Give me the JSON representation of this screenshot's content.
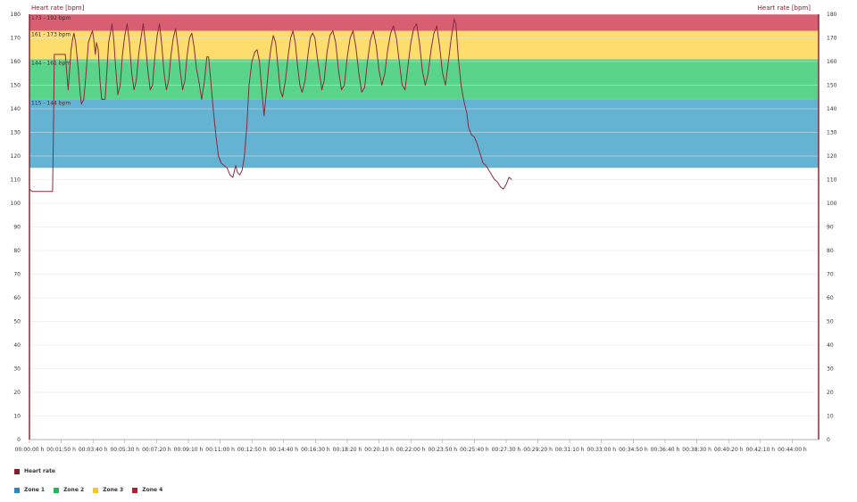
{
  "chart_data": {
    "type": "line",
    "title": "",
    "ylabel_left": "Heart rate [bpm]",
    "ylabel_right": "Heart rate [bpm]",
    "xlabel": "",
    "ylim": [
      0,
      180
    ],
    "xlim": [
      0,
      2980
    ],
    "y_ticks": [
      0,
      10,
      20,
      30,
      40,
      50,
      60,
      70,
      80,
      90,
      100,
      110,
      120,
      130,
      140,
      150,
      160,
      170,
      180
    ],
    "x_ticks": [
      "00:00:00 h",
      "00:01:50 h",
      "00:03:40 h",
      "00:05:30 h",
      "00:07:20 h",
      "00:09:10 h",
      "00:11:00 h",
      "00:12:50 h",
      "00:14:40 h",
      "00:16:30 h",
      "00:18:20 h",
      "00:20:10 h",
      "00:22:00 h",
      "00:23:50 h",
      "00:25:40 h",
      "00:27:30 h",
      "00:29:20 h",
      "00:31:10 h",
      "00:33:00 h",
      "00:34:50 h",
      "00:36:40 h",
      "00:38:30 h",
      "00:40:20 h",
      "00:42:10 h",
      "00:44:00 h"
    ],
    "x_tick_step_seconds": 110,
    "grid": true,
    "zones": [
      {
        "name": "Zone 1",
        "label": "115 - 144 bpm",
        "min": 115,
        "max": 144,
        "color": "#65b3d3"
      },
      {
        "name": "Zone 2",
        "label": "144 - 161 bpm",
        "min": 144,
        "max": 161,
        "color": "#5ad48a"
      },
      {
        "name": "Zone 3",
        "label": "161 - 173 bpm",
        "min": 161,
        "max": 173,
        "color": "#fdde6c"
      },
      {
        "name": "Zone 4",
        "label": "173 - 192 bpm",
        "min": 173,
        "max": 180,
        "color": "#d85f72"
      }
    ],
    "series": [
      {
        "name": "Heart rate",
        "color": "#8b2a3e",
        "points": [
          [
            0,
            106
          ],
          [
            10,
            105
          ],
          [
            80,
            105
          ],
          [
            83,
            130
          ],
          [
            86,
            163
          ],
          [
            110,
            163
          ],
          [
            124,
            163
          ],
          [
            134,
            148
          ],
          [
            144,
            165
          ],
          [
            150,
            170
          ],
          [
            154,
            172
          ],
          [
            160,
            168
          ],
          [
            168,
            158
          ],
          [
            176,
            146
          ],
          [
            180,
            142
          ],
          [
            188,
            144
          ],
          [
            196,
            155
          ],
          [
            204,
            168
          ],
          [
            212,
            171
          ],
          [
            218,
            173
          ],
          [
            222,
            170
          ],
          [
            228,
            163
          ],
          [
            232,
            168
          ],
          [
            238,
            165
          ],
          [
            244,
            152
          ],
          [
            250,
            144
          ],
          [
            262,
            144
          ],
          [
            268,
            156
          ],
          [
            274,
            168
          ],
          [
            280,
            172
          ],
          [
            286,
            176
          ],
          [
            292,
            169
          ],
          [
            298,
            158
          ],
          [
            306,
            146
          ],
          [
            314,
            150
          ],
          [
            322,
            163
          ],
          [
            330,
            171
          ],
          [
            338,
            176
          ],
          [
            346,
            168
          ],
          [
            354,
            155
          ],
          [
            362,
            148
          ],
          [
            370,
            152
          ],
          [
            378,
            163
          ],
          [
            386,
            170
          ],
          [
            394,
            176
          ],
          [
            402,
            167
          ],
          [
            410,
            156
          ],
          [
            418,
            148
          ],
          [
            426,
            150
          ],
          [
            434,
            162
          ],
          [
            442,
            171
          ],
          [
            450,
            176
          ],
          [
            458,
            167
          ],
          [
            466,
            155
          ],
          [
            474,
            148
          ],
          [
            482,
            152
          ],
          [
            490,
            163
          ],
          [
            498,
            170
          ],
          [
            506,
            174
          ],
          [
            514,
            166
          ],
          [
            522,
            156
          ],
          [
            530,
            148
          ],
          [
            538,
            152
          ],
          [
            546,
            163
          ],
          [
            554,
            170
          ],
          [
            562,
            172
          ],
          [
            570,
            166
          ],
          [
            578,
            157
          ],
          [
            586,
            152
          ],
          [
            596,
            144
          ],
          [
            606,
            152
          ],
          [
            614,
            162
          ],
          [
            620,
            162
          ],
          [
            626,
            154
          ],
          [
            636,
            140
          ],
          [
            646,
            128
          ],
          [
            654,
            120
          ],
          [
            664,
            117
          ],
          [
            674,
            116
          ],
          [
            684,
            115
          ],
          [
            694,
            112
          ],
          [
            704,
            111
          ],
          [
            710,
            114
          ],
          [
            714,
            116
          ],
          [
            720,
            113
          ],
          [
            728,
            112
          ],
          [
            736,
            114
          ],
          [
            744,
            120
          ],
          [
            752,
            132
          ],
          [
            760,
            150
          ],
          [
            770,
            160
          ],
          [
            780,
            164
          ],
          [
            788,
            165
          ],
          [
            796,
            160
          ],
          [
            804,
            148
          ],
          [
            812,
            137
          ],
          [
            820,
            147
          ],
          [
            828,
            158
          ],
          [
            836,
            166
          ],
          [
            844,
            171
          ],
          [
            852,
            168
          ],
          [
            860,
            158
          ],
          [
            868,
            148
          ],
          [
            876,
            145
          ],
          [
            886,
            152
          ],
          [
            896,
            163
          ],
          [
            904,
            170
          ],
          [
            912,
            173
          ],
          [
            920,
            168
          ],
          [
            928,
            158
          ],
          [
            936,
            150
          ],
          [
            944,
            147
          ],
          [
            954,
            152
          ],
          [
            964,
            163
          ],
          [
            972,
            170
          ],
          [
            980,
            172
          ],
          [
            988,
            170
          ],
          [
            996,
            162
          ],
          [
            1004,
            155
          ],
          [
            1012,
            148
          ],
          [
            1020,
            152
          ],
          [
            1030,
            164
          ],
          [
            1040,
            171
          ],
          [
            1050,
            173
          ],
          [
            1060,
            168
          ],
          [
            1070,
            156
          ],
          [
            1080,
            148
          ],
          [
            1090,
            150
          ],
          [
            1100,
            162
          ],
          [
            1110,
            170
          ],
          [
            1120,
            173
          ],
          [
            1130,
            166
          ],
          [
            1140,
            155
          ],
          [
            1150,
            147
          ],
          [
            1160,
            149
          ],
          [
            1170,
            160
          ],
          [
            1180,
            169
          ],
          [
            1190,
            173
          ],
          [
            1200,
            167
          ],
          [
            1210,
            156
          ],
          [
            1220,
            150
          ],
          [
            1230,
            155
          ],
          [
            1240,
            165
          ],
          [
            1250,
            172
          ],
          [
            1260,
            175
          ],
          [
            1270,
            170
          ],
          [
            1280,
            160
          ],
          [
            1290,
            150
          ],
          [
            1300,
            148
          ],
          [
            1310,
            158
          ],
          [
            1320,
            168
          ],
          [
            1330,
            174
          ],
          [
            1340,
            176
          ],
          [
            1350,
            168
          ],
          [
            1360,
            156
          ],
          [
            1370,
            150
          ],
          [
            1380,
            155
          ],
          [
            1390,
            165
          ],
          [
            1400,
            172
          ],
          [
            1410,
            175
          ],
          [
            1420,
            166
          ],
          [
            1430,
            155
          ],
          [
            1440,
            150
          ],
          [
            1450,
            160
          ],
          [
            1460,
            170
          ],
          [
            1470,
            178
          ],
          [
            1476,
            176
          ],
          [
            1484,
            162
          ],
          [
            1494,
            150
          ],
          [
            1504,
            143
          ],
          [
            1514,
            138
          ],
          [
            1520,
            132
          ],
          [
            1530,
            129
          ],
          [
            1540,
            128
          ],
          [
            1550,
            125
          ],
          [
            1560,
            121
          ],
          [
            1570,
            117
          ],
          [
            1580,
            116
          ],
          [
            1590,
            114
          ],
          [
            1600,
            112
          ],
          [
            1610,
            110
          ],
          [
            1620,
            109
          ],
          [
            1630,
            107
          ],
          [
            1640,
            106
          ],
          [
            1650,
            108
          ],
          [
            1660,
            111
          ],
          [
            1670,
            110
          ]
        ]
      }
    ],
    "legend": {
      "series_label": "Heart rate",
      "zone_labels": [
        "Zone 1",
        "Zone 2",
        "Zone 3",
        "Zone 4"
      ]
    }
  }
}
